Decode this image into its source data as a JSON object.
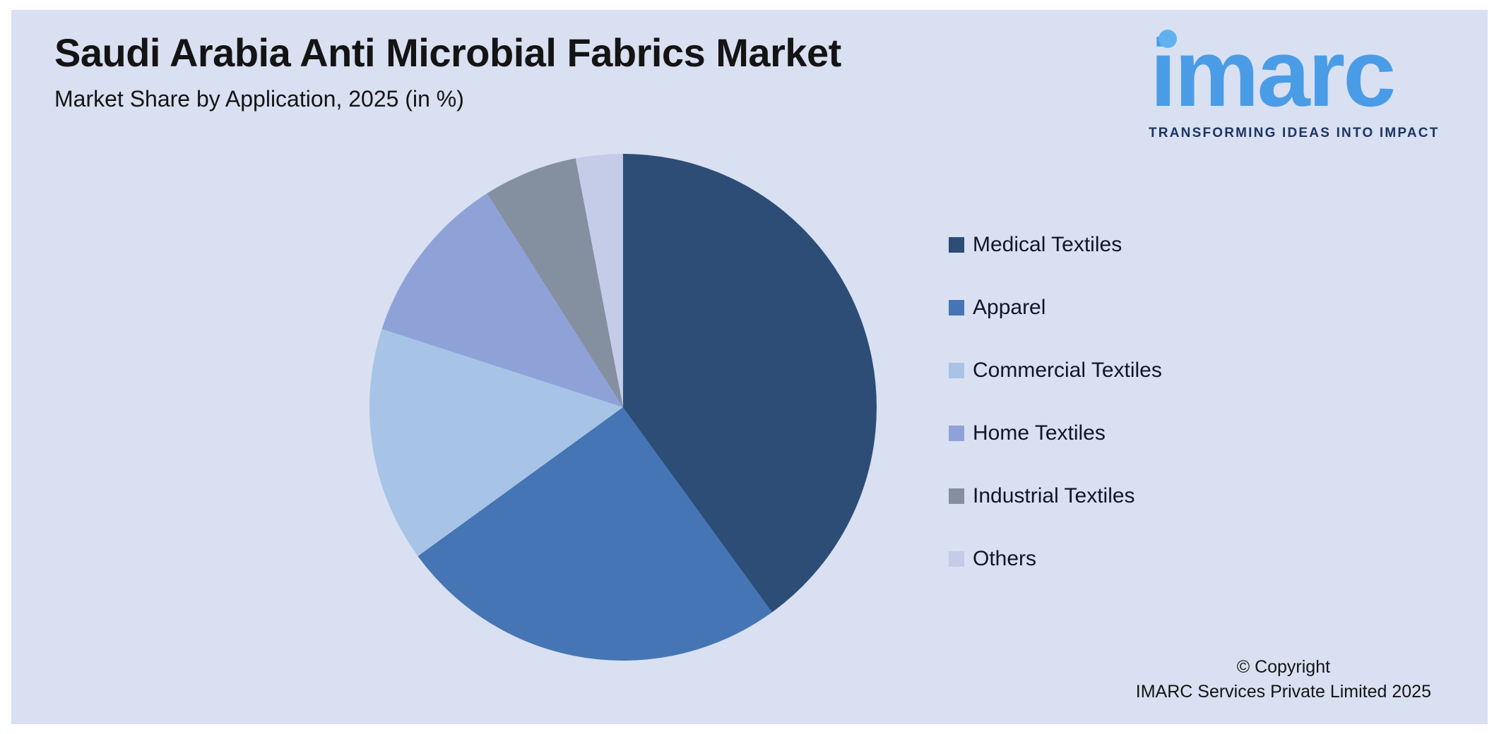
{
  "page": {
    "title": "Saudi Arabia Anti Microbial Fabrics Market",
    "subtitle": "Market Share by Application, 2025 (in %)",
    "background_color": "#d9e0f2"
  },
  "logo": {
    "text": "imarc",
    "tagline": "TRANSFORMING IDEAS INTO IMPACT",
    "color": "#4a9ce6",
    "tagline_color": "#1b3560"
  },
  "footer": {
    "line1": "© Copyright",
    "line2": "IMARC Services Private Limited 2025"
  },
  "chart_data": {
    "type": "pie",
    "title": "Saudi Arabia Anti Microbial Fabrics Market",
    "subtitle": "Market Share by Application, 2025 (in %)",
    "unit": "%",
    "start_angle_deg": 0,
    "direction": "clockwise",
    "legend_position": "right",
    "segments": [
      {
        "label": "Medical Textiles",
        "value": 40,
        "color": "#2d4d76"
      },
      {
        "label": "Apparel",
        "value": 25,
        "color": "#4575b4"
      },
      {
        "label": "Commercial Textiles",
        "value": 15,
        "color": "#a7c4e6"
      },
      {
        "label": "Home Textiles",
        "value": 11,
        "color": "#8fa2d8"
      },
      {
        "label": "Industrial Textiles",
        "value": 6,
        "color": "#84909f"
      },
      {
        "label": "Others",
        "value": 3,
        "color": "#c5cce8"
      }
    ]
  }
}
